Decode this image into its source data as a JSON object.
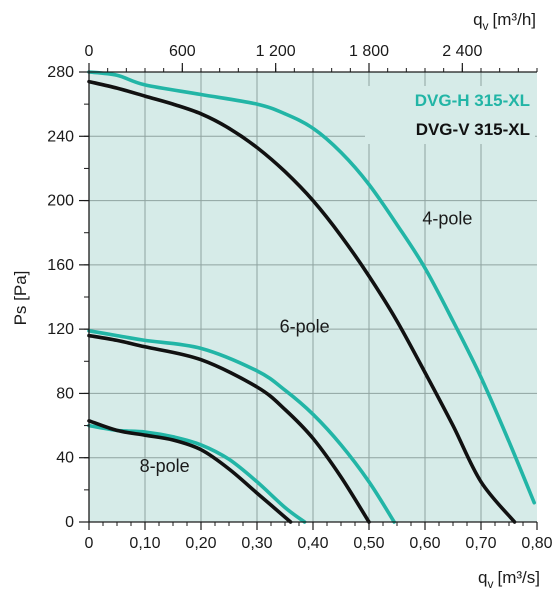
{
  "chart_data": {
    "type": "line",
    "x_bottom": {
      "label": "q",
      "label_sub": "v",
      "label_unit": "[m³/s]",
      "range": [
        0,
        0.8
      ],
      "ticks": [
        "0",
        "0,10",
        "0,20",
        "0,30",
        "0,40",
        "0,50",
        "0,60",
        "0,70",
        "0,80"
      ]
    },
    "x_top": {
      "label": "q",
      "label_sub": "v",
      "label_unit": "[m³/h]",
      "range": [
        0,
        2880
      ],
      "ticks": [
        "0",
        "600",
        "1 200",
        "1 800",
        "2 400"
      ]
    },
    "y": {
      "label": "Ps [Pa]",
      "range": [
        0,
        280
      ],
      "ticks": [
        "0",
        "40",
        "80",
        "120",
        "160",
        "200",
        "240",
        "280"
      ]
    },
    "grid": true,
    "legend": {
      "position": "top-right"
    },
    "colors": {
      "background": "#d6ebe8",
      "grid": "#8fa3a0",
      "axis": "#1a1a1a"
    },
    "series": [
      {
        "name": "DVG-H 315-XL",
        "color": "#22b5a6",
        "group": "4-pole",
        "x": [
          0,
          0.05,
          0.1,
          0.2,
          0.3,
          0.35,
          0.4,
          0.45,
          0.5,
          0.55,
          0.6,
          0.65,
          0.7,
          0.75,
          0.795
        ],
        "y": [
          280,
          278,
          272,
          266,
          260,
          254,
          245,
          230,
          210,
          185,
          158,
          125,
          90,
          50,
          12
        ]
      },
      {
        "name": "DVG-V 315-XL",
        "color": "#111111",
        "group": "4-pole",
        "x": [
          0,
          0.05,
          0.1,
          0.15,
          0.2,
          0.25,
          0.3,
          0.35,
          0.4,
          0.45,
          0.5,
          0.55,
          0.6,
          0.65,
          0.7,
          0.76
        ],
        "y": [
          274,
          270,
          265,
          260,
          254,
          245,
          233,
          218,
          200,
          178,
          153,
          125,
          93,
          60,
          25,
          0
        ]
      },
      {
        "name": "",
        "color": "#22b5a6",
        "group": "6-pole",
        "x": [
          0,
          0.05,
          0.1,
          0.2,
          0.3,
          0.35,
          0.4,
          0.45,
          0.5,
          0.545
        ],
        "y": [
          119,
          116,
          113,
          108,
          94,
          82,
          67,
          48,
          25,
          0
        ]
      },
      {
        "name": "",
        "color": "#111111",
        "group": "6-pole",
        "x": [
          0,
          0.05,
          0.1,
          0.2,
          0.3,
          0.35,
          0.4,
          0.45,
          0.5
        ],
        "y": [
          116,
          113,
          109,
          101,
          84,
          70,
          52,
          28,
          0
        ]
      },
      {
        "name": "",
        "color": "#22b5a6",
        "group": "8-pole",
        "x": [
          0,
          0.05,
          0.1,
          0.15,
          0.2,
          0.25,
          0.3,
          0.35,
          0.385
        ],
        "y": [
          60,
          57,
          56,
          53,
          48,
          39,
          25,
          9,
          0
        ]
      },
      {
        "name": "",
        "color": "#111111",
        "group": "8-pole",
        "x": [
          0,
          0.05,
          0.1,
          0.15,
          0.2,
          0.25,
          0.3,
          0.36
        ],
        "y": [
          63,
          57,
          54,
          51,
          45,
          33,
          18,
          0
        ]
      }
    ],
    "annotations": [
      {
        "text": "4-pole",
        "x": 0.64,
        "y": 185
      },
      {
        "text": "6-pole",
        "x": 0.385,
        "y": 118
      },
      {
        "text": "8-pole",
        "x": 0.135,
        "y": 31
      }
    ]
  }
}
